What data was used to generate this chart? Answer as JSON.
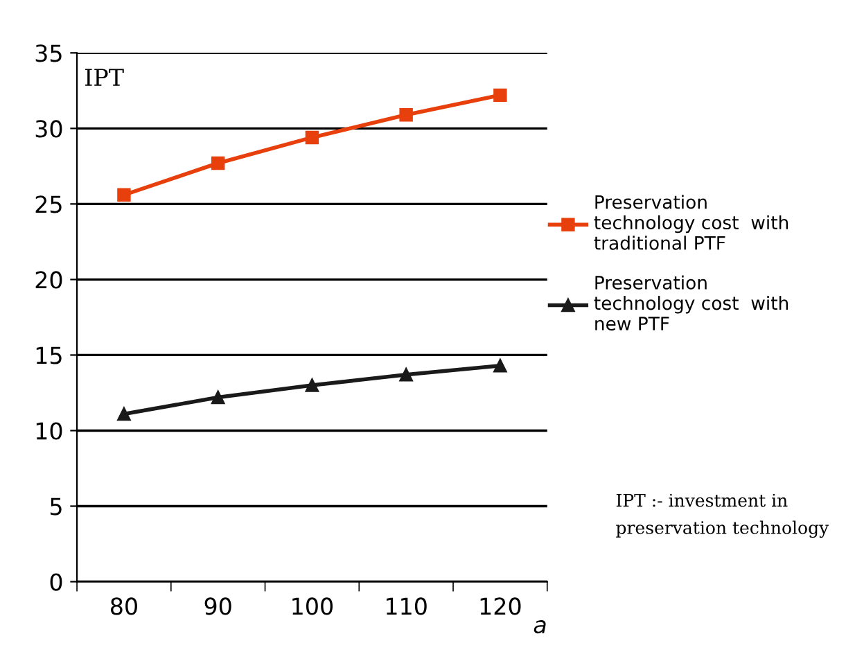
{
  "chart_data": {
    "type": "line",
    "categories": [
      "80",
      "90",
      "100",
      "110",
      "120"
    ],
    "series": [
      {
        "name": "Preservation\ntechnology cost  with\ntraditional PTF",
        "color": "#e8400c",
        "marker": "square",
        "values": [
          25.6,
          27.7,
          29.4,
          30.9,
          32.2
        ]
      },
      {
        "name": "Preservation\ntechnology cost  with\nnew PTF",
        "color": "#1a1a1a",
        "marker": "triangle",
        "values": [
          11.1,
          12.2,
          13.0,
          13.7,
          14.3
        ]
      }
    ],
    "xlabel": "a",
    "ylabel": "IPT",
    "ylim": [
      0,
      35
    ],
    "yticks": [
      0,
      5,
      10,
      15,
      20,
      25,
      30,
      35
    ],
    "grid": "y",
    "legend": "right",
    "line_style": "solid",
    "annotations": [
      "IPT :- investment in\npreservation technology"
    ]
  }
}
